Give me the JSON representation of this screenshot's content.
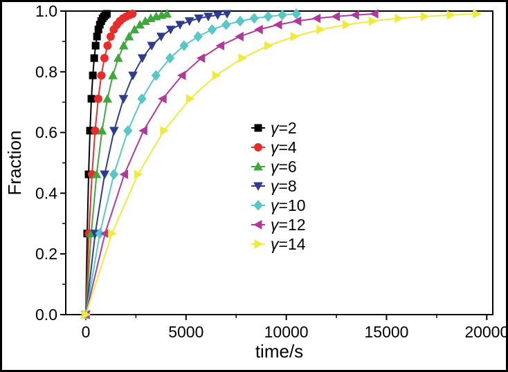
{
  "figure": {
    "background": "#ffffff",
    "border_color": "#000000"
  },
  "chart_data": {
    "type": "line",
    "title": "",
    "xlabel": "time/s",
    "ylabel": "Fraction",
    "xlim": [
      -1000,
      20300
    ],
    "ylim": [
      0,
      1.0
    ],
    "xticks": [
      0,
      5000,
      10000,
      15000,
      20000
    ],
    "xtick_labels": [
      "0",
      "5000",
      "10000",
      "15000",
      "20000"
    ],
    "x_minor_ticks": [
      2500,
      7500,
      12500,
      17500
    ],
    "yticks": [
      0,
      0.2,
      0.4,
      0.6,
      0.8,
      1.0
    ],
    "ytick_labels": [
      "0.0",
      "0.2",
      "0.4",
      "0.6",
      "0.8",
      "1.0"
    ],
    "y_minor_ticks": [
      0.1,
      0.3,
      0.5,
      0.7,
      0.9
    ],
    "grid": false,
    "legend_position": "center",
    "axis_color": "#000000",
    "series": [
      {
        "name": "γ=2",
        "gamma": 2,
        "color": "#000000",
        "marker": "square",
        "x": [
          0,
          70,
          140,
          210,
          280,
          350,
          420,
          490,
          560,
          630,
          700,
          770,
          840,
          910,
          980,
          1050
        ],
        "y": [
          0,
          0.267,
          0.462,
          0.606,
          0.711,
          0.788,
          0.845,
          0.886,
          0.916,
          0.939,
          0.955,
          0.967,
          0.976,
          0.982,
          0.987,
          0.991
        ]
      },
      {
        "name": "γ=4",
        "gamma": 4,
        "color": "#e82c2a",
        "marker": "circle",
        "x": [
          0,
          155,
          310,
          465,
          620,
          775,
          930,
          1085,
          1240,
          1395,
          1550,
          1705,
          1860,
          2015,
          2170,
          2325
        ],
        "y": [
          0,
          0.267,
          0.462,
          0.606,
          0.711,
          0.788,
          0.845,
          0.886,
          0.916,
          0.939,
          0.955,
          0.967,
          0.976,
          0.982,
          0.987,
          0.991
        ]
      },
      {
        "name": "γ=6",
        "gamma": 6,
        "color": "#3fa73c",
        "marker": "triangle-up",
        "x": [
          0,
          270,
          540,
          810,
          1080,
          1350,
          1620,
          1890,
          2160,
          2430,
          2700,
          2970,
          3240,
          3510,
          3780,
          4050
        ],
        "y": [
          0,
          0.267,
          0.462,
          0.606,
          0.711,
          0.788,
          0.845,
          0.886,
          0.916,
          0.939,
          0.955,
          0.967,
          0.976,
          0.982,
          0.987,
          0.991
        ]
      },
      {
        "name": "γ=8",
        "gamma": 8,
        "color": "#2e3b91",
        "marker": "triangle-down",
        "x": [
          0,
          470,
          940,
          1410,
          1880,
          2350,
          2820,
          3290,
          3760,
          4230,
          4700,
          5170,
          5640,
          6110,
          6580,
          7050
        ],
        "y": [
          0,
          0.267,
          0.462,
          0.606,
          0.711,
          0.788,
          0.845,
          0.886,
          0.916,
          0.939,
          0.955,
          0.967,
          0.976,
          0.982,
          0.987,
          0.991
        ]
      },
      {
        "name": "γ=10",
        "gamma": 10,
        "color": "#59c7c6",
        "marker": "diamond",
        "x": [
          0,
          700,
          1400,
          2100,
          2800,
          3500,
          4200,
          4900,
          5600,
          6300,
          7000,
          7700,
          8400,
          9100,
          9800,
          10500
        ],
        "y": [
          0,
          0.267,
          0.462,
          0.606,
          0.711,
          0.788,
          0.845,
          0.886,
          0.916,
          0.939,
          0.955,
          0.967,
          0.976,
          0.982,
          0.987,
          0.991
        ]
      },
      {
        "name": "γ=12",
        "gamma": 12,
        "color": "#b03a9c",
        "marker": "triangle-left",
        "x": [
          0,
          960,
          1920,
          2880,
          3840,
          4800,
          5760,
          6720,
          7680,
          8640,
          9600,
          10560,
          11520,
          12480,
          13440,
          14400
        ],
        "y": [
          0,
          0.267,
          0.462,
          0.606,
          0.711,
          0.788,
          0.845,
          0.886,
          0.916,
          0.939,
          0.955,
          0.967,
          0.976,
          0.982,
          0.987,
          0.991
        ]
      },
      {
        "name": "γ=14",
        "gamma": 14,
        "color": "#efeb3c",
        "marker": "triangle-right",
        "x": [
          0,
          1300,
          2600,
          3900,
          5200,
          6500,
          7800,
          9100,
          10400,
          11700,
          13000,
          14300,
          15600,
          16900,
          18200,
          19500
        ],
        "y": [
          0,
          0.267,
          0.462,
          0.606,
          0.711,
          0.788,
          0.845,
          0.886,
          0.916,
          0.939,
          0.955,
          0.967,
          0.976,
          0.982,
          0.987,
          0.991
        ]
      }
    ]
  }
}
